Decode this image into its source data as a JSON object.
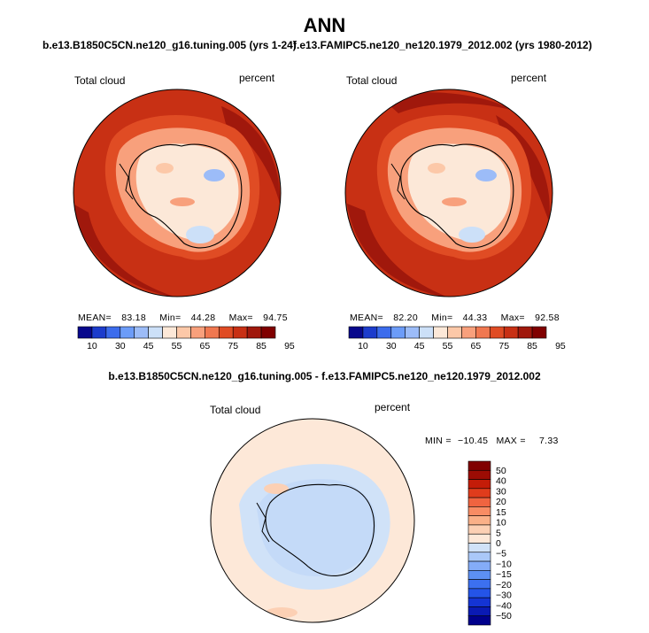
{
  "title": "ANN",
  "case1_title": "b.e13.B1850C5CN.ne120_g16.tuning.005 (yrs 1-24)",
  "case2_title": "f.e13.FAMIPC5.ne120_ne120.1979_2012.002 (yrs 1980-2012)",
  "diff_title": "b.e13.B1850C5CN.ne120_g16.tuning.005 - f.e13.FAMIPC5.ne120_ne120.1979_2012.002",
  "colors": {
    "abs_scale": [
      "#08088c",
      "#1c3ccc",
      "#3c6cec",
      "#6c9cf8",
      "#9cbcf8",
      "#cce0f8",
      "#fce8d8",
      "#fcc8a8",
      "#f8a07c",
      "#f07850",
      "#e04c24",
      "#c83014",
      "#a0180c",
      "#800000"
    ],
    "diff_scale": [
      "#00008c",
      "#0a1ab4",
      "#1434d4",
      "#2454e8",
      "#3c70f0",
      "#5c90f4",
      "#84acf8",
      "#aac8f8",
      "#d0e2f8",
      "#fde8d8",
      "#fcd0b4",
      "#fab088",
      "#f88c64",
      "#f06440",
      "#e03c1c",
      "#c41c08",
      "#9c0c04",
      "#800000"
    ]
  },
  "chart_data": [
    {
      "type": "heatmap",
      "projection": "south polar stereographic",
      "variable_label": "Total cloud",
      "units_label": "percent",
      "stats": {
        "mean_label": "MEAN=",
        "mean": "83.18",
        "min_label": "Min=",
        "min": "44.28",
        "max_label": "Max=",
        "max": "94.75"
      },
      "colorbar_ticks": [
        "10",
        "30",
        "45",
        "55",
        "65",
        "75",
        "85",
        "95"
      ]
    },
    {
      "type": "heatmap",
      "projection": "south polar stereographic",
      "variable_label": "Total cloud",
      "units_label": "percent",
      "stats": {
        "mean_label": "MEAN=",
        "mean": "82.20",
        "min_label": "Min=",
        "min": "44.33",
        "max_label": "Max=",
        "max": "92.58"
      },
      "colorbar_ticks": [
        "10",
        "30",
        "45",
        "55",
        "65",
        "75",
        "85",
        "95"
      ]
    },
    {
      "type": "heatmap",
      "projection": "south polar stereographic",
      "variable_label": "Total cloud",
      "units_label": "percent",
      "stats": {
        "min_label": "MIN =",
        "min": "−10.45",
        "max_label": "MAX =",
        "max": "7.33"
      },
      "colorbar_ticks": [
        "50",
        "40",
        "30",
        "20",
        "15",
        "10",
        "5",
        "0",
        "−5",
        "−10",
        "−15",
        "−20",
        "−30",
        "−40",
        "−50"
      ]
    }
  ]
}
